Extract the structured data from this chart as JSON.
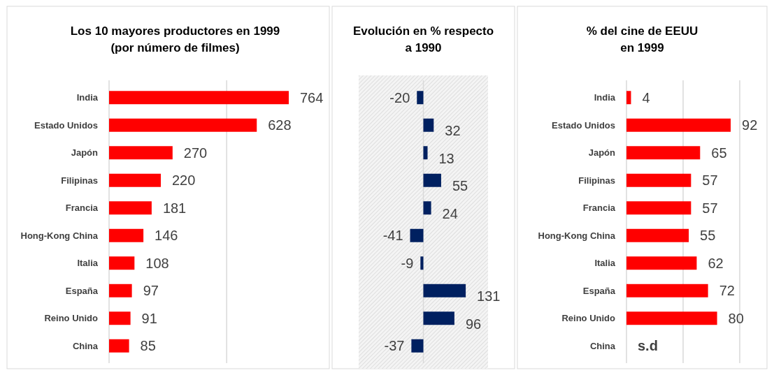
{
  "chart_data": [
    {
      "type": "bar",
      "orientation": "horizontal",
      "title": "Los 10 mayores productores en 1999\n(por número de filmes)",
      "categories": [
        "India",
        "Estado Unidos",
        "Japón",
        "Filipinas",
        "Francia",
        "Hong-Kong China",
        "Italia",
        "España",
        "Reino Unido",
        "China"
      ],
      "values": [
        764,
        628,
        270,
        220,
        181,
        146,
        108,
        97,
        91,
        85
      ],
      "color": "#ff0000",
      "ref_lines": [
        {
          "axis": "x",
          "value": 500,
          "color": "#d9d9d9"
        }
      ],
      "data_labels": true,
      "tick_labels": "y"
    },
    {
      "type": "bar",
      "orientation": "horizontal",
      "title": "Evolución en % respecto\na 1990",
      "categories": [
        null,
        null,
        null,
        null,
        null,
        null,
        null,
        null,
        null,
        null
      ],
      "values": [
        -20,
        32,
        13,
        55,
        24,
        -41,
        -9,
        131,
        96,
        -37
      ],
      "color": "#002060",
      "xlim": [
        -200,
        200
      ],
      "data_labels": true,
      "tick_labels": false
    },
    {
      "type": "bar",
      "orientation": "horizontal",
      "title": "% del cine de EEUU\nen 1999",
      "categories": [
        "India",
        "Estado Unidos",
        "Japón",
        "Filipinas",
        "Francia",
        "Hong-Kong China",
        "Italia",
        "España",
        "Reino Unido",
        "China"
      ],
      "values": [
        4,
        92,
        65,
        57,
        57,
        55,
        62,
        72,
        80,
        null
      ],
      "value_labels": [
        "4",
        "92",
        "65",
        "57",
        "57",
        "55",
        "62",
        "72",
        "80",
        "s.d"
      ],
      "color": "#ff0000",
      "xlim": [
        0,
        100
      ],
      "ref_lines": [
        {
          "axis": "x",
          "value": 50,
          "color": "#d9d9d9"
        },
        {
          "axis": "x",
          "value": 100,
          "color": "#d9d9d9"
        }
      ],
      "tick_labels": "y"
    }
  ]
}
